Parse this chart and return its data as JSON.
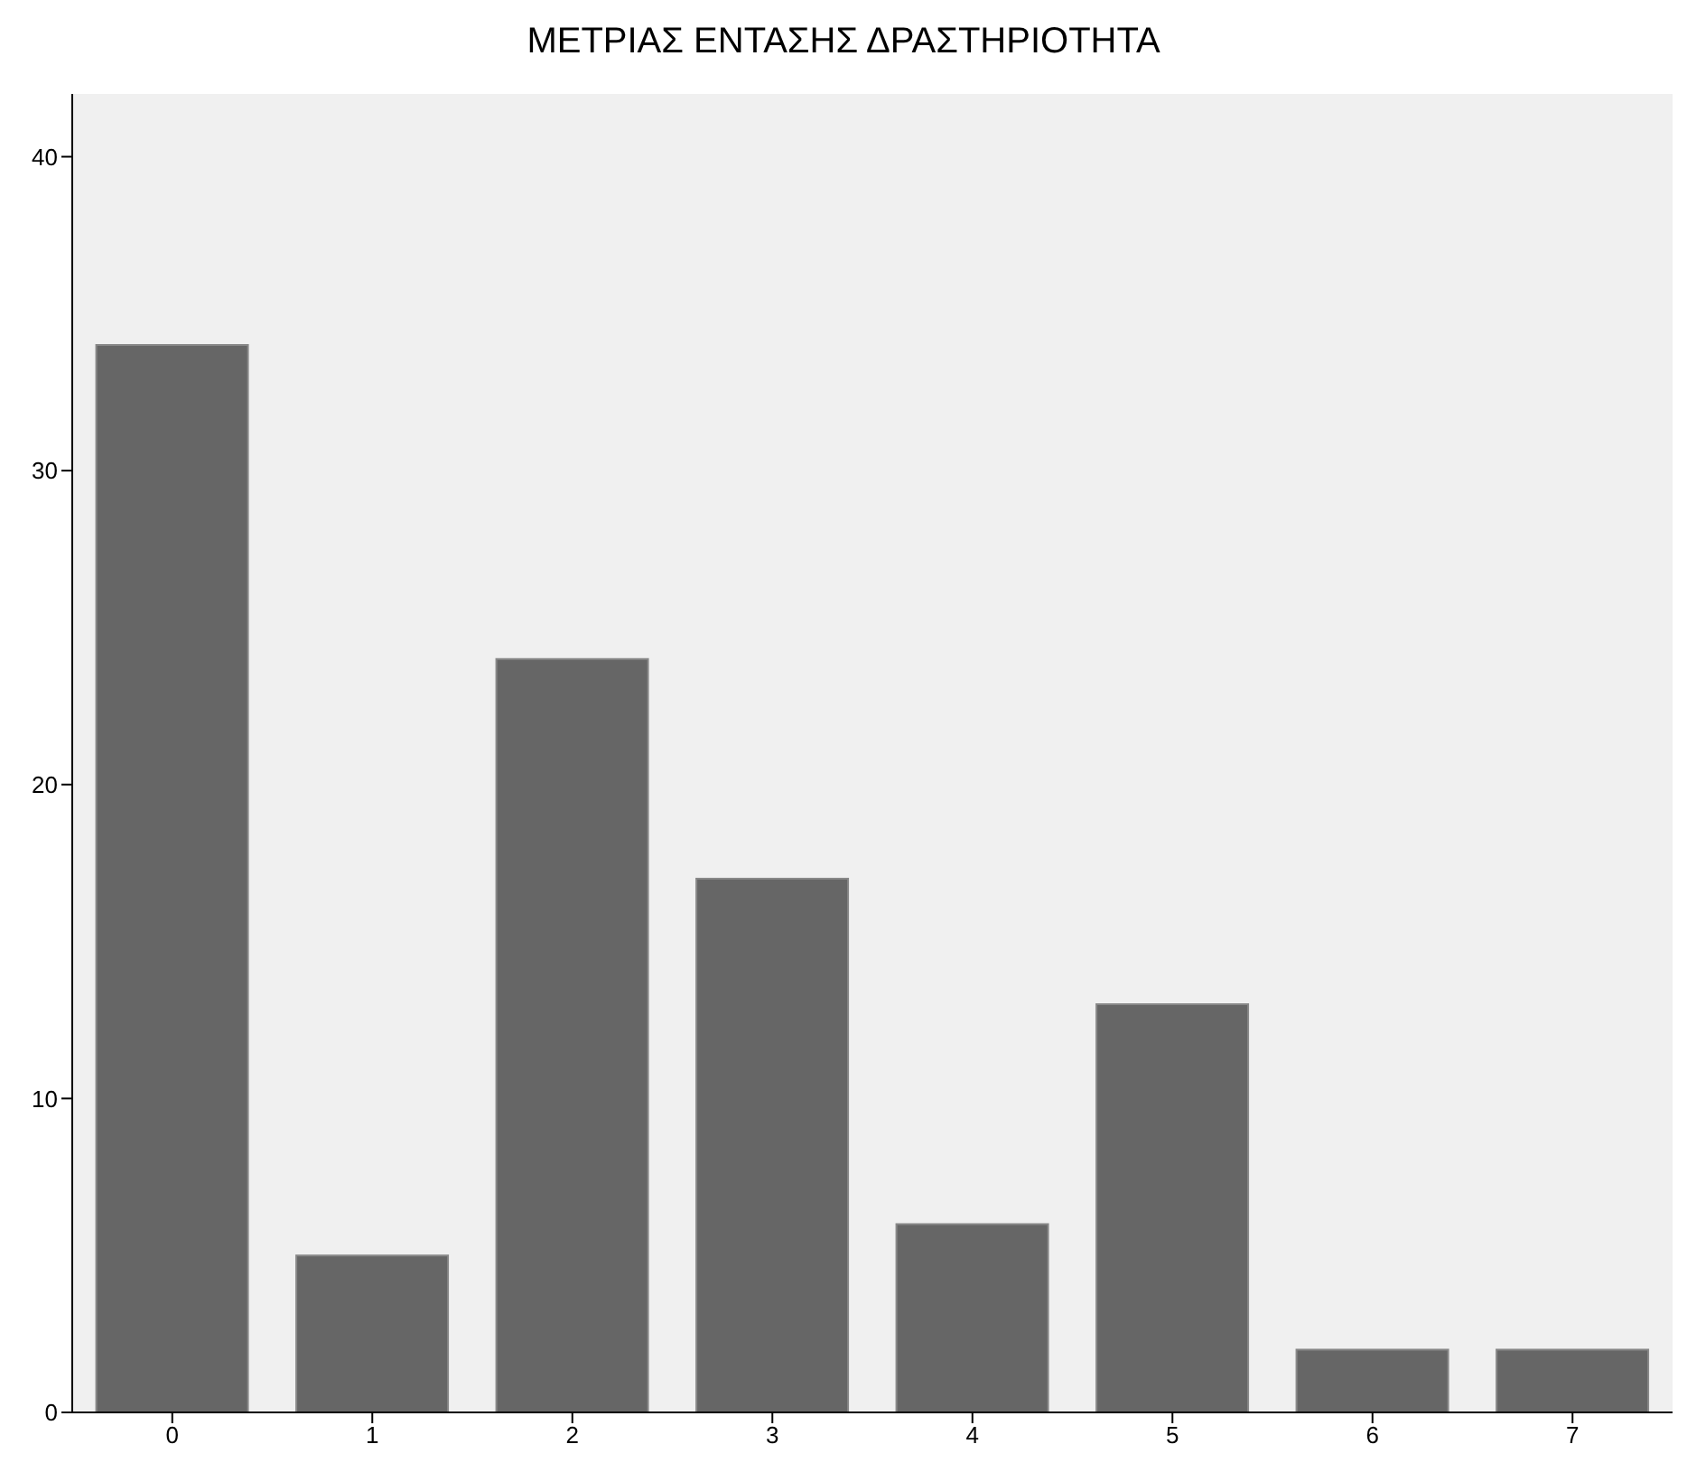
{
  "chart_data": {
    "type": "bar",
    "title": "ΜΕΤΡΙΑΣ ΕΝΤΑΣΗΣ ΔΡΑΣΤΗΡΙΟΤΗΤΑ",
    "categories": [
      "0",
      "1",
      "2",
      "3",
      "4",
      "5",
      "6",
      "7"
    ],
    "values": [
      34,
      5,
      24,
      17,
      6,
      13,
      2,
      2
    ],
    "color": "#666666",
    "ylim": [
      0,
      42
    ],
    "yticks": [
      0,
      10,
      20,
      30,
      40
    ]
  }
}
